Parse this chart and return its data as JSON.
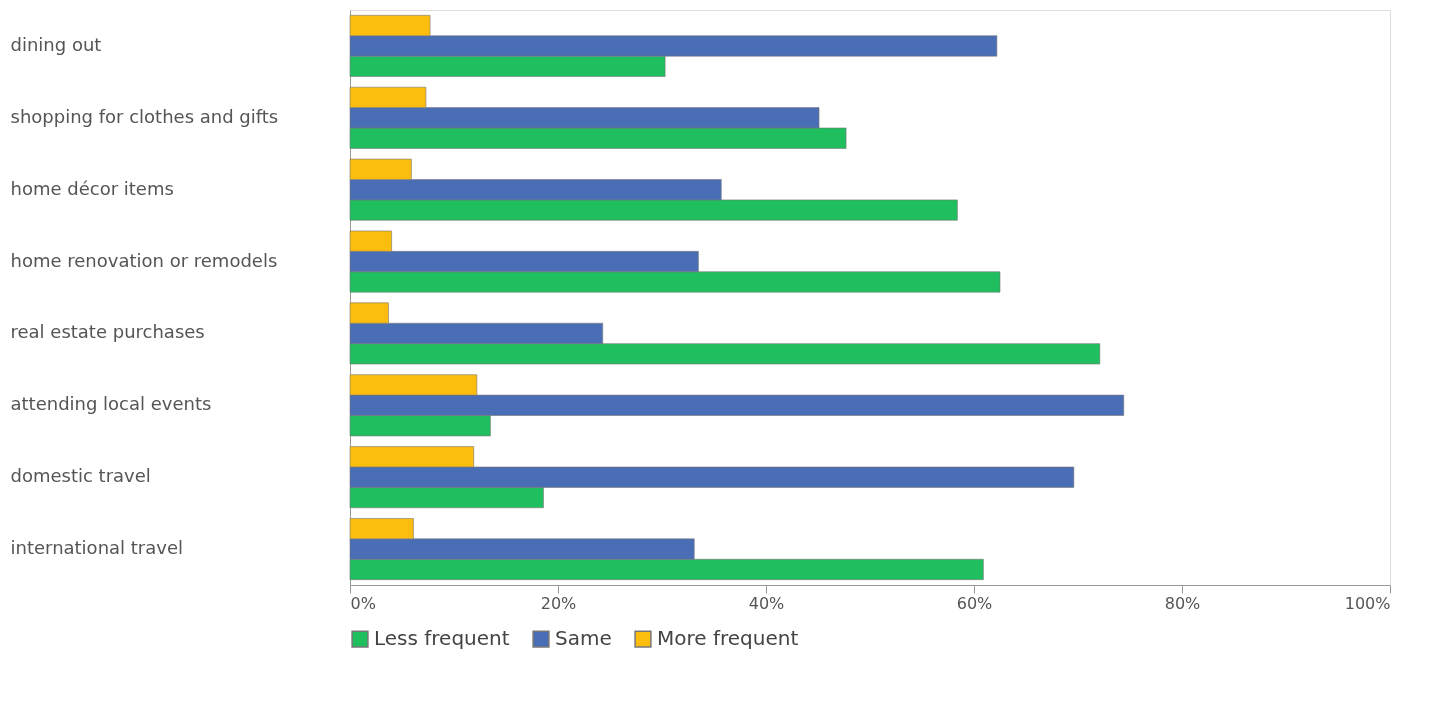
{
  "chart_data": {
    "type": "bar",
    "orientation": "horizontal",
    "categories": [
      "dining out",
      "shopping for clothes and gifts",
      "home décor items",
      "home renovation or remodels",
      "real estate purchases",
      "attending local events",
      "domestic travel",
      "international travel"
    ],
    "series": [
      {
        "name": "Less frequent",
        "color": "#1fbf5f",
        "values": [
          30.3,
          47.7,
          58.4,
          62.5,
          72.1,
          13.5,
          18.6,
          60.9
        ]
      },
      {
        "name": "Same",
        "color": "#4a6eb5",
        "values": [
          62.2,
          45.1,
          35.7,
          33.5,
          24.3,
          74.4,
          69.6,
          33.1
        ]
      },
      {
        "name": "More frequent",
        "color": "#fdbd0f",
        "values": [
          7.7,
          7.3,
          5.9,
          4.0,
          3.7,
          12.2,
          11.9,
          6.1
        ]
      }
    ],
    "xlim": [
      0,
      100
    ],
    "xticks": [
      {
        "value": 0,
        "label": "0%"
      },
      {
        "value": 20,
        "label": "20%"
      },
      {
        "value": 40,
        "label": "40%"
      },
      {
        "value": 60,
        "label": "60%"
      },
      {
        "value": 80,
        "label": "80%"
      },
      {
        "value": 100,
        "label": "100%"
      }
    ],
    "grid": false,
    "legend": "bottom"
  }
}
